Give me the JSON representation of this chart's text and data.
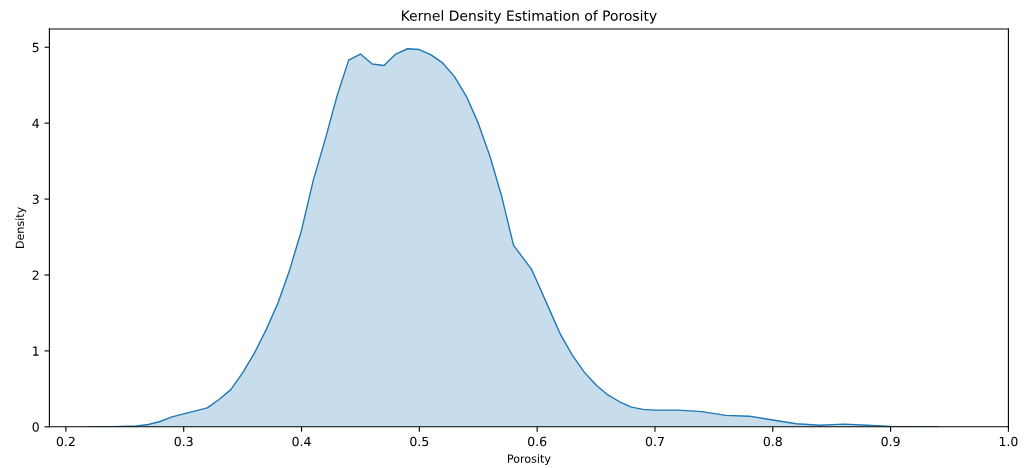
{
  "chart_data": {
    "type": "area",
    "title": "Kernel Density Estimation of Porosity",
    "xlabel": "Porosity",
    "ylabel": "Density",
    "x": [
      0.22,
      0.24,
      0.26,
      0.27,
      0.28,
      0.29,
      0.3,
      0.31,
      0.32,
      0.33,
      0.34,
      0.35,
      0.36,
      0.37,
      0.38,
      0.39,
      0.4,
      0.41,
      0.42,
      0.43,
      0.44,
      0.45,
      0.46,
      0.47,
      0.48,
      0.49,
      0.5,
      0.51,
      0.52,
      0.53,
      0.54,
      0.55,
      0.56,
      0.57,
      0.58,
      0.595,
      0.6,
      0.61,
      0.62,
      0.63,
      0.64,
      0.65,
      0.66,
      0.67,
      0.68,
      0.69,
      0.7,
      0.72,
      0.74,
      0.76,
      0.78,
      0.8,
      0.82,
      0.84,
      0.86,
      0.88,
      0.9,
      0.92,
      0.94
    ],
    "series": [
      {
        "color": "#1f77b4",
        "values": [
          0,
          0,
          0.01,
          0.03,
          0.07,
          0.13,
          0.17,
          0.21,
          0.25,
          0.36,
          0.49,
          0.71,
          0.97,
          1.28,
          1.63,
          2.07,
          2.59,
          3.25,
          3.78,
          4.35,
          4.83,
          4.91,
          4.78,
          4.76,
          4.91,
          4.98,
          4.97,
          4.9,
          4.79,
          4.61,
          4.35,
          4.0,
          3.56,
          3.03,
          2.39,
          2.08,
          1.91,
          1.56,
          1.21,
          0.94,
          0.72,
          0.55,
          0.42,
          0.33,
          0.26,
          0.23,
          0.22,
          0.22,
          0.2,
          0.15,
          0.14,
          0.09,
          0.04,
          0.02,
          0.035,
          0.02,
          0.005,
          0,
          0
        ]
      }
    ],
    "xlim": [
      0.186,
      1.0
    ],
    "ylim": [
      0,
      5.24
    ],
    "xticks": [
      0.2,
      0.3,
      0.4,
      0.5,
      0.6,
      0.7,
      0.8,
      0.9,
      {
        "value": 1.0,
        "label": "1.0"
      }
    ],
    "yticks": [
      0,
      1,
      2,
      3,
      4,
      5
    ],
    "grid": false
  }
}
